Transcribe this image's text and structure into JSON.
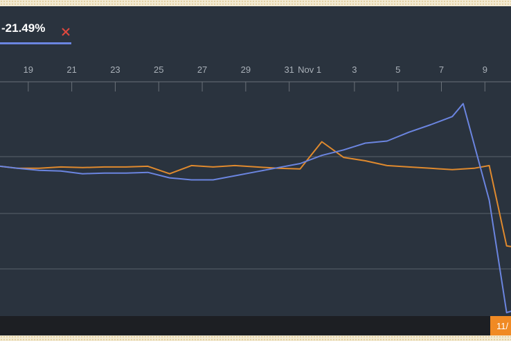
{
  "legend": {
    "value": "-21.49%",
    "close_icon": "close-x-icon",
    "color": "#6b85e0"
  },
  "date_badge": "11/",
  "colors": {
    "background": "#2a333e",
    "series_blue": "#6b85e0",
    "series_orange": "#e08a2e",
    "grid": "#5b636c",
    "badge": "#f08a24"
  },
  "chart_data": {
    "type": "line",
    "title": "",
    "xlabel": "",
    "ylabel": "",
    "x_ticks": [
      "19",
      "21",
      "23",
      "25",
      "27",
      "29",
      "31",
      "Nov 1",
      "3",
      "5",
      "7",
      "9"
    ],
    "x_tick_days": [
      19,
      21,
      23,
      25,
      27,
      29,
      31,
      32,
      34,
      36,
      38,
      40
    ],
    "xlim": [
      17.7,
      41.2
    ],
    "ylim": [
      -22,
      12
    ],
    "grid": "horizontal",
    "legend": "top-left",
    "series": [
      {
        "color": "#6b85e0",
        "x": [
          17.7,
          18.5,
          19.5,
          20.5,
          21.5,
          22.5,
          23.5,
          24.5,
          25.5,
          26.5,
          27.5,
          28.5,
          29.5,
          30.5,
          31.5,
          32.5,
          33.5,
          34.5,
          35.5,
          36.5,
          37.5,
          38.5,
          39,
          40.2,
          41,
          41.2
        ],
        "y": [
          0,
          -0.3,
          -0.6,
          -0.7,
          -1.1,
          -1.0,
          -1.0,
          -0.9,
          -1.7,
          -2.0,
          -2.0,
          -1.4,
          -0.8,
          -0.2,
          0.4,
          1.6,
          2.4,
          3.4,
          3.7,
          5.0,
          6.1,
          7.3,
          9.2,
          -5.0,
          -21.5,
          -21.3
        ]
      },
      {
        "color": "#e08a2e",
        "x": [
          17.7,
          18.5,
          19.5,
          20.5,
          21.5,
          22.5,
          23.5,
          24.5,
          25.5,
          26.5,
          27.5,
          28.5,
          29.5,
          30.5,
          31.5,
          32.5,
          33.5,
          34.5,
          35.5,
          36.5,
          37.5,
          38.5,
          39.5,
          40.2,
          41,
          41.2
        ],
        "y": [
          0,
          -0.3,
          -0.3,
          -0.1,
          -0.2,
          -0.1,
          -0.1,
          0,
          -1.1,
          0.1,
          -0.1,
          0.1,
          -0.1,
          -0.3,
          -0.4,
          3.6,
          1.3,
          0.8,
          0.1,
          -0.1,
          -0.3,
          -0.5,
          -0.3,
          0.1,
          -11.7,
          -11.8
        ]
      }
    ]
  }
}
